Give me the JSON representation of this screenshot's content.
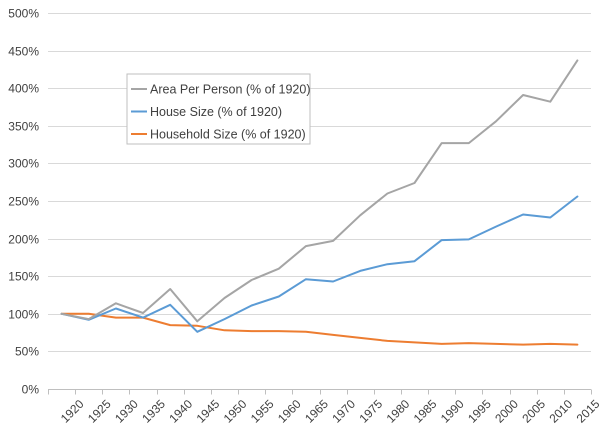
{
  "chart_data": {
    "type": "line",
    "x": [
      "1920",
      "1925",
      "1930",
      "1935",
      "1940",
      "1945",
      "1950",
      "1955",
      "1960",
      "1965",
      "1970",
      "1975",
      "1980",
      "1985",
      "1990",
      "1995",
      "2000",
      "2005",
      "2010",
      "2015"
    ],
    "ylim": [
      0,
      500
    ],
    "yticks": [
      0,
      50,
      100,
      150,
      200,
      250,
      300,
      350,
      400,
      450,
      500
    ],
    "ytick_labels": [
      "0%",
      "50%",
      "100%",
      "150%",
      "200%",
      "250%",
      "300%",
      "350%",
      "400%",
      "450%",
      "500%"
    ],
    "grid": true,
    "legend_position": "upper-left",
    "xlabel": "",
    "ylabel": "",
    "series": [
      {
        "name": "Area Per Person (% of 1920)",
        "color": "#a5a5a5",
        "values": [
          100,
          93,
          114,
          101,
          133,
          90,
          121,
          145,
          160,
          190,
          197,
          231,
          260,
          274,
          327,
          327,
          356,
          391,
          382,
          437
        ]
      },
      {
        "name": "House Size (% of 1920)",
        "color": "#5b9bd5",
        "values": [
          100,
          92,
          107,
          95,
          112,
          76,
          93,
          111,
          123,
          146,
          143,
          157,
          166,
          170,
          198,
          199,
          216,
          232,
          228,
          256
        ]
      },
      {
        "name": "Household Size (% of 1920)",
        "color": "#ed7d31",
        "values": [
          100,
          100,
          95,
          95,
          85,
          84,
          78,
          77,
          77,
          76,
          72,
          68,
          64,
          62,
          60,
          61,
          60,
          59,
          60,
          59
        ]
      }
    ]
  }
}
